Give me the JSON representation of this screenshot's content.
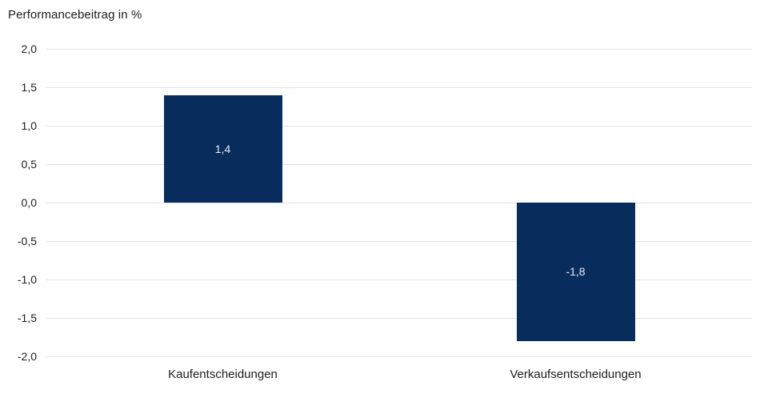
{
  "chart_data": {
    "type": "bar",
    "title": "Performancebeitrag in %",
    "categories": [
      "Kaufentscheidungen",
      "Verkaufsentscheidungen"
    ],
    "values": [
      1.4,
      -1.8
    ],
    "value_labels": [
      "1,4",
      "-1,8"
    ],
    "series": [
      {
        "name": "Performancebeitrag",
        "values": [
          1.4,
          -1.8
        ]
      }
    ],
    "xlabel": "",
    "ylabel": "Performancebeitrag in %",
    "ylim": [
      -2.0,
      2.0
    ],
    "yticks": [
      2.0,
      1.5,
      1.0,
      0.5,
      0.0,
      -0.5,
      -1.0,
      -1.5,
      -2.0
    ],
    "ytick_labels": [
      "2,0",
      "1,5",
      "1,0",
      "0,5",
      "0,0",
      "-0,5",
      "-1,0",
      "-1,5",
      "-2,0"
    ],
    "grid": "horizontal",
    "legend": "none",
    "decimal_format": "german-comma",
    "colors": {
      "bar_fill": "#082d5c",
      "bar_value_text": "#e8ecf3",
      "gridline": "#e3e3e3",
      "axis_text": "#212121",
      "title_text": "#1d1d1d",
      "background": "#ffffff"
    }
  }
}
